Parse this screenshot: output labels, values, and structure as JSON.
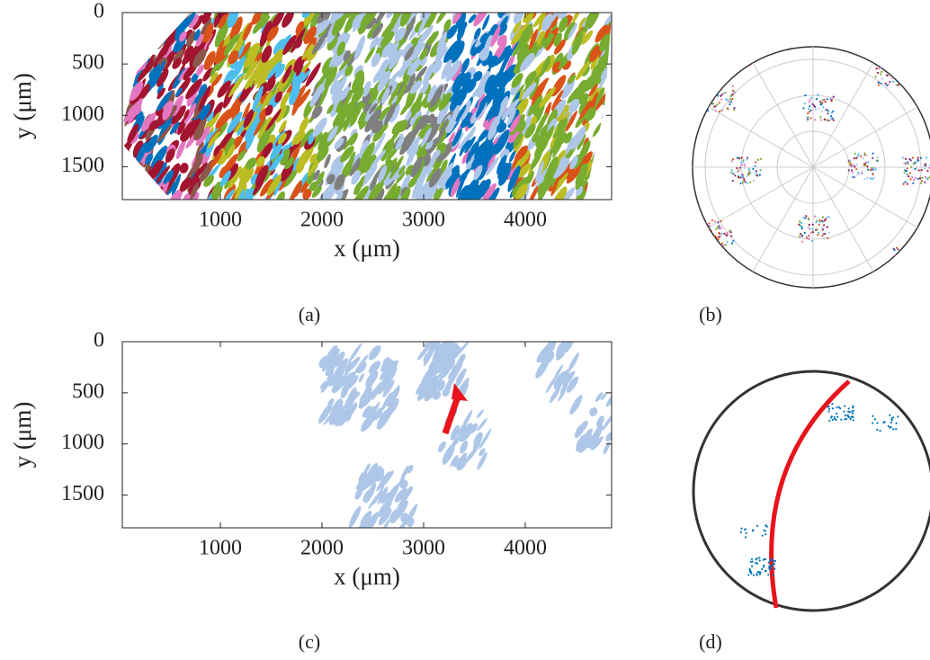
{
  "figure": {
    "axes": [
      {
        "label": "(a)",
        "x_label": "x (μm)",
        "y_label": "y (μm)",
        "xlim": [
          35,
          4850
        ],
        "ylim": [
          0,
          1820
        ],
        "xticks": [
          1000,
          2000,
          3000,
          4000
        ],
        "yticks": [
          0,
          500,
          1000,
          1500
        ]
      },
      {
        "label": "(c)",
        "x_label": "x (μm)",
        "y_label": "y (μm)",
        "xlim": [
          35,
          4850
        ],
        "ylim": [
          0,
          1820
        ],
        "xticks": [
          1000,
          2000,
          3000,
          4000
        ],
        "yticks": [
          0,
          500,
          1000,
          1500
        ]
      }
    ],
    "pole_figures": [
      {
        "label": "(b)"
      },
      {
        "label": "(d)"
      }
    ]
  }
}
